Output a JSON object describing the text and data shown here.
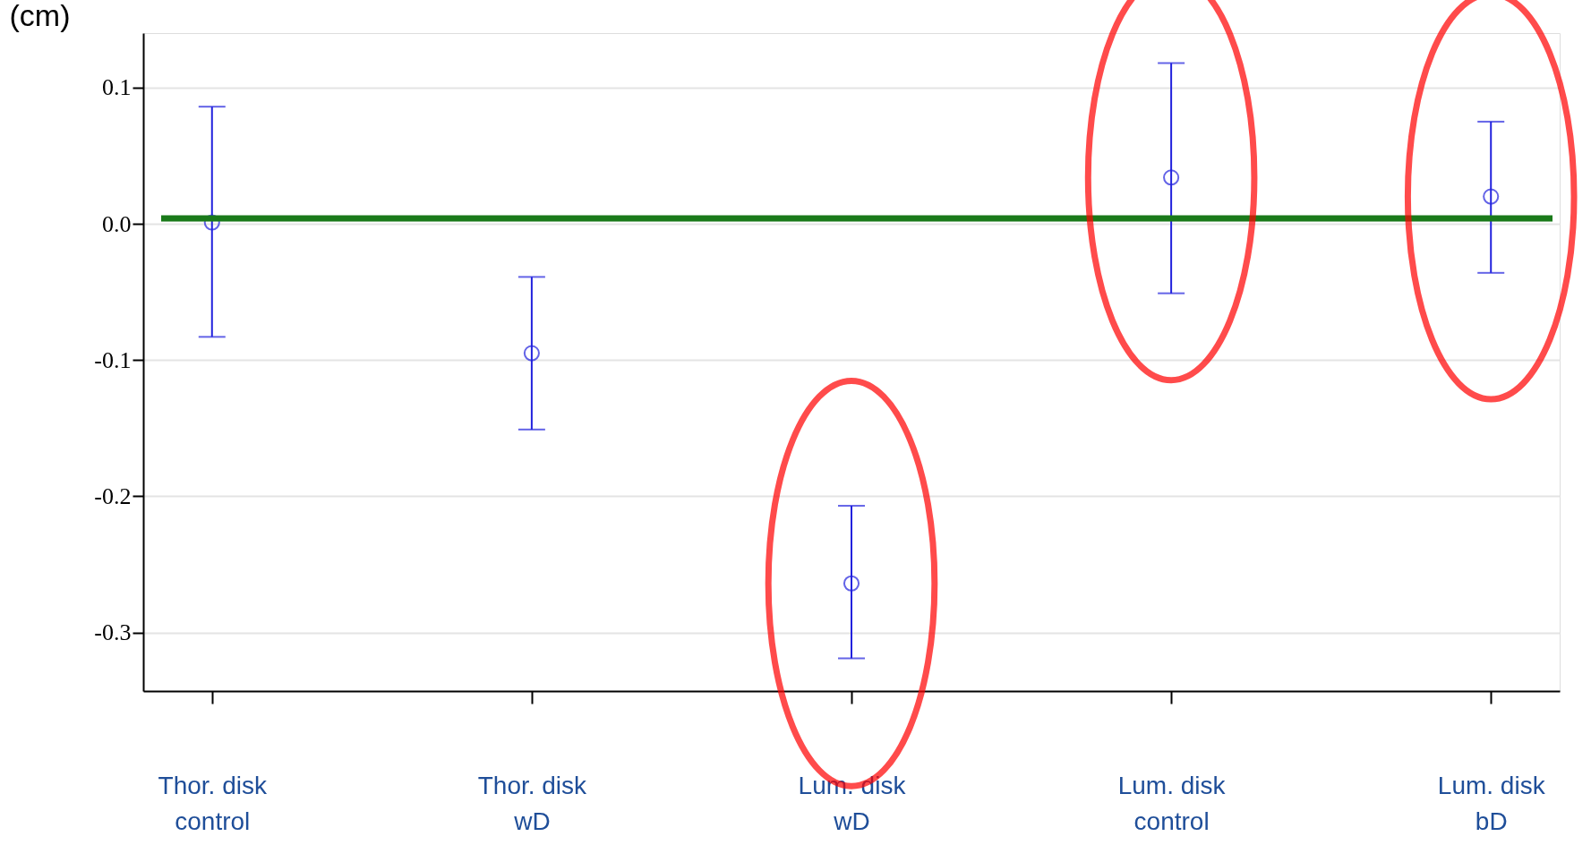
{
  "chart_data": {
    "type": "scatter",
    "ylabel": "(cm)",
    "categories": [
      "Thor. disk\ncontrol",
      "Thor. disk\nwD",
      "Lum. disk\nwD",
      "Lum. disk\ncontrol",
      "Lum. disk\nbD"
    ],
    "series": [
      {
        "color": "#2222dd",
        "values": [
          0.001,
          -0.095,
          -0.264,
          0.034,
          0.02
        ],
        "errors": [
          [
            -0.083,
            0.086
          ],
          [
            -0.151,
            -0.039
          ],
          [
            -0.319,
            -0.207
          ],
          [
            -0.051,
            0.118
          ],
          [
            -0.036,
            0.075
          ]
        ]
      }
    ],
    "marker": "circle",
    "ylim": [
      -0.343,
      0.14
    ],
    "yticks": [
      0.1,
      {
        "value": 0,
        "label": "0.0"
      },
      -0.1,
      -0.2,
      -0.3
    ],
    "grid": "y",
    "ref_lines": [
      {
        "axis": "y",
        "value": 0.004,
        "color": "#1a7a1a",
        "line_style": "solid"
      }
    ]
  }
}
